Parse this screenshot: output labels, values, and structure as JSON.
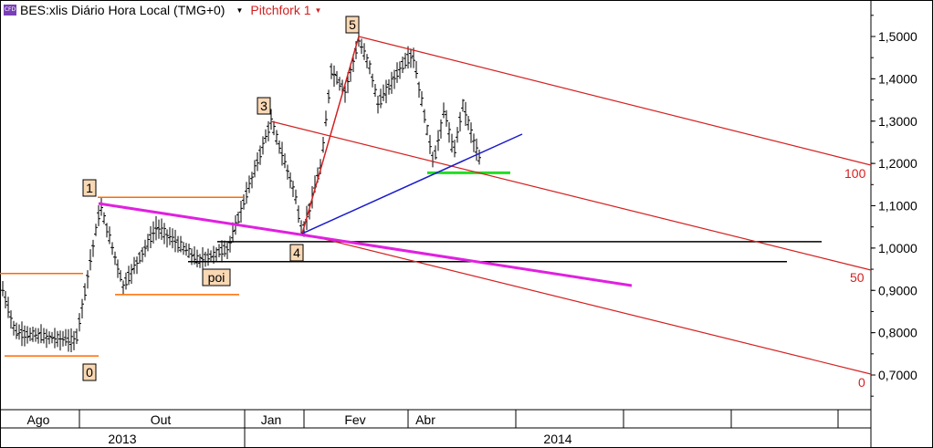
{
  "header": {
    "badge": "CFD",
    "instrument": "BES:xlis Diário Hora Local (TMG+0)",
    "study": "Pitchfork 1",
    "dropdown_glyph": "▼"
  },
  "chart_data": {
    "type": "candlestick",
    "y_axis": {
      "min": 0.64,
      "max": 1.56,
      "ticks": [
        "1,5000",
        "1,4000",
        "1,3000",
        "1,2000",
        "1,1000",
        "1,0000",
        "0,9000",
        "0,8000",
        "0,7000"
      ],
      "tick_values": [
        1.5,
        1.4,
        1.3,
        1.2,
        1.1,
        1.0,
        0.9,
        0.8,
        0.7
      ],
      "position": "right"
    },
    "x_axis": {
      "months": [
        "Ago",
        "Out",
        "Jan",
        "Fev",
        "Abr"
      ],
      "years": [
        "2013",
        "2014"
      ]
    },
    "price_series": {
      "color": "#000000",
      "key_points": [
        {
          "label": "",
          "value": 0.9
        },
        {
          "label": "",
          "value": 0.8
        },
        {
          "label": "0",
          "value": 0.78
        },
        {
          "label": "1",
          "value": 1.1
        },
        {
          "label": "",
          "value": 0.91
        },
        {
          "label": "",
          "value": 1.05
        },
        {
          "label": "poi",
          "value": 0.97
        },
        {
          "label": "",
          "value": 1.0
        },
        {
          "label": "3",
          "value": 1.3
        },
        {
          "label": "",
          "value": 1.13
        },
        {
          "label": "4",
          "value": 1.03
        },
        {
          "label": "",
          "value": 1.2
        },
        {
          "label": "",
          "value": 1.42
        },
        {
          "label": "",
          "value": 1.37
        },
        {
          "label": "5",
          "value": 1.49
        },
        {
          "label": "",
          "value": 1.43
        },
        {
          "label": "",
          "value": 1.34
        },
        {
          "label": "",
          "value": 1.43
        },
        {
          "label": "",
          "value": 1.2
        },
        {
          "label": "",
          "value": 1.46
        },
        {
          "label": "",
          "value": 1.2
        },
        {
          "label": "",
          "value": 1.33
        },
        {
          "label": "",
          "value": 1.22
        },
        {
          "label": "",
          "value": 1.34
        },
        {
          "label": "",
          "value": 1.21
        }
      ]
    },
    "wave_labels": [
      "0",
      "1",
      "poi",
      "3",
      "4",
      "5"
    ],
    "pitchfork": {
      "name": "Pitchfork 1",
      "color": "#d42020",
      "level_labels": [
        "100",
        "50",
        "0"
      ],
      "level_values": [
        100,
        50,
        0
      ]
    },
    "horizontal_levels": [
      {
        "color": "#000000",
        "value": 1.015
      },
      {
        "color": "#000000",
        "value": 0.968
      },
      {
        "color": "#ff6a00",
        "value": 1.12
      },
      {
        "color": "#ff6a00",
        "value": 0.94
      },
      {
        "color": "#ff6a00",
        "value": 0.89
      },
      {
        "color": "#ff6a00",
        "value": 0.745
      },
      {
        "color": "#22dd22",
        "value": 1.178
      }
    ],
    "trendlines": [
      {
        "color": "#e020e0"
      },
      {
        "color": "#1a1acc"
      }
    ],
    "grid": false
  }
}
